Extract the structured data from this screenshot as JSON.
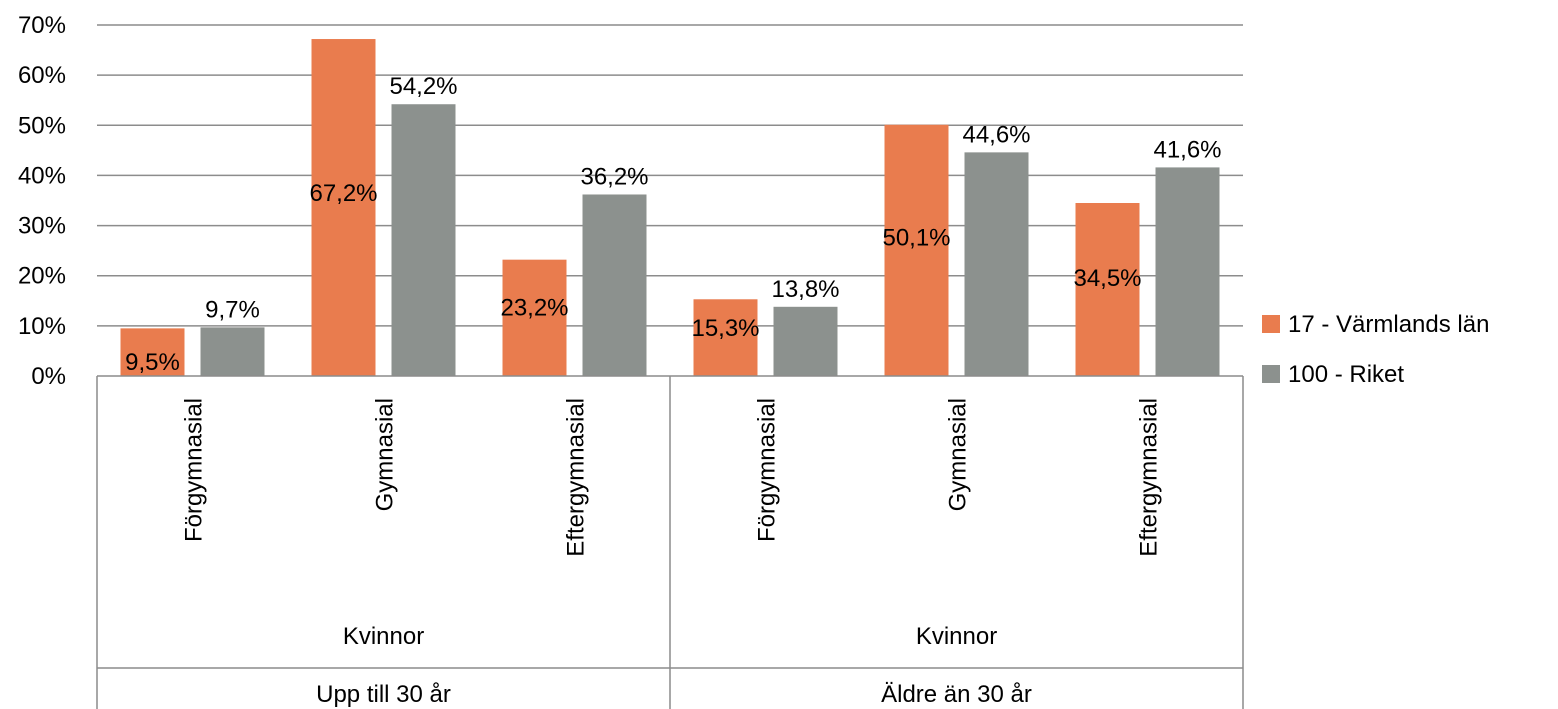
{
  "chart_data": {
    "type": "bar",
    "title": "",
    "xlabel": "",
    "ylabel": "",
    "ylim": [
      0,
      70
    ],
    "y_ticks": [
      "0%",
      "10%",
      "20%",
      "30%",
      "40%",
      "50%",
      "60%",
      "70%"
    ],
    "y_tick_values": [
      0,
      10,
      20,
      30,
      40,
      50,
      60,
      70
    ],
    "grid": true,
    "legend_position": "right",
    "categories": [
      "Förgymnasial",
      "Gymnasial",
      "Eftergymnasial",
      "Förgymnasial",
      "Gymnasial",
      "Eftergymnasial"
    ],
    "category_level_2": [
      "Kvinnor",
      "Kvinnor"
    ],
    "category_level_3": [
      "Upp till 30 år",
      "Äldre än 30 år"
    ],
    "series": [
      {
        "name": "17 - Värmlands län",
        "color": "#E97C4E",
        "values": [
          9.5,
          67.2,
          23.2,
          15.3,
          50.1,
          34.5
        ],
        "labels": [
          "9,5%",
          "67,2%",
          "23,2%",
          "15,3%",
          "50,1%",
          "34,5%"
        ]
      },
      {
        "name": "100 - Riket",
        "color": "#8C918E",
        "values": [
          9.7,
          54.2,
          36.2,
          13.8,
          44.6,
          41.6
        ],
        "labels": [
          "9,7%",
          "54,2%",
          "36,2%",
          "13,8%",
          "44,6%",
          "41,6%"
        ]
      }
    ]
  }
}
